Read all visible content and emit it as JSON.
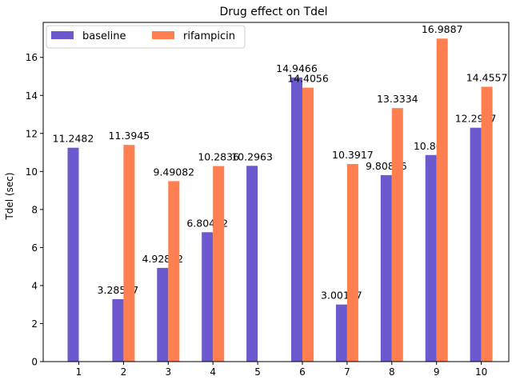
{
  "chart_data": {
    "type": "bar",
    "title": "Drug effect on Tdel",
    "xlabel": "",
    "ylabel": "Tdel (sec)",
    "categories": [
      "1",
      "2",
      "3",
      "4",
      "5",
      "6",
      "7",
      "8",
      "9",
      "10"
    ],
    "ylim": [
      0,
      17.84
    ],
    "yticks": [
      0,
      2,
      4,
      6,
      8,
      10,
      12,
      14,
      16
    ],
    "grid": false,
    "legend_position": "top-left",
    "series": [
      {
        "name": "baseline",
        "color": "#6a5acd",
        "values": [
          11.2482,
          3.28597,
          4.92862,
          6.80412,
          10.2963,
          14.9466,
          3.00197,
          9.80896,
          10.865,
          12.2997
        ],
        "labels": [
          "11.2482",
          "3.28597",
          "4.92862",
          "6.80412",
          "10.2963",
          "14.9466",
          "3.00197",
          "9.80896",
          "10.865",
          "12.2997"
        ]
      },
      {
        "name": "rifampicin",
        "color": "#ff7f50",
        "values": [
          null,
          11.3945,
          9.49082,
          10.2836,
          null,
          14.4056,
          10.3917,
          13.3334,
          16.9887,
          14.4557
        ],
        "labels": [
          "",
          "11.3945",
          "9.49082",
          "10.2836",
          "",
          "14.4056",
          "10.3917",
          "13.3334",
          "16.9887",
          "14.4557"
        ]
      }
    ]
  }
}
